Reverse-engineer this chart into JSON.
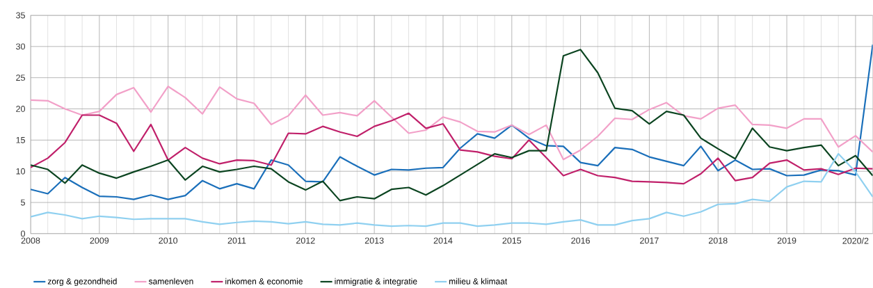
{
  "chart_data": {
    "type": "line",
    "x": [
      2008,
      2008.25,
      2008.5,
      2008.75,
      2009,
      2009.25,
      2009.5,
      2009.75,
      2010,
      2010.25,
      2010.5,
      2010.75,
      2011,
      2011.25,
      2011.5,
      2011.75,
      2012,
      2012.25,
      2012.5,
      2012.75,
      2013,
      2013.25,
      2013.5,
      2013.75,
      2014,
      2014.25,
      2014.5,
      2014.75,
      2015,
      2015.25,
      2015.5,
      2015.75,
      2016,
      2016.25,
      2016.5,
      2016.75,
      2017,
      2017.25,
      2017.5,
      2017.75,
      2018,
      2018.25,
      2018.5,
      2018.75,
      2019,
      2019.25,
      2019.5,
      2019.75,
      2020,
      2020.25
    ],
    "series": [
      {
        "name": "zorg & gezondheid",
        "color": "#1a6fba",
        "values": [
          7.1,
          6.4,
          9.0,
          7.4,
          6.0,
          5.9,
          5.5,
          6.2,
          5.5,
          6.1,
          8.5,
          7.2,
          8.0,
          7.2,
          11.8,
          11.0,
          8.4,
          8.3,
          12.3,
          10.8,
          9.4,
          10.3,
          10.2,
          10.5,
          10.6,
          13.7,
          16.0,
          15.3,
          17.4,
          15.3,
          14.1,
          14.0,
          11.4,
          10.9,
          13.8,
          13.5,
          12.3,
          11.6,
          10.9,
          14.0,
          10.1,
          11.8,
          10.3,
          10.4,
          9.3,
          9.4,
          10.2,
          10.1,
          9.4,
          30.3
        ]
      },
      {
        "name": "samenleven",
        "color": "#f2a0c8",
        "values": [
          21.4,
          21.3,
          20.0,
          19.0,
          19.6,
          22.3,
          23.4,
          19.5,
          23.6,
          21.8,
          19.2,
          23.5,
          21.6,
          20.9,
          17.5,
          18.9,
          22.2,
          19.0,
          19.4,
          18.9,
          21.3,
          18.7,
          16.1,
          16.6,
          18.7,
          17.9,
          16.4,
          16.3,
          17.4,
          15.9,
          17.4,
          11.9,
          13.4,
          15.6,
          18.5,
          18.3,
          19.9,
          21.0,
          18.9,
          18.4,
          20.1,
          20.6,
          17.5,
          17.4,
          16.9,
          18.4,
          18.4,
          13.9,
          15.7,
          13.1
        ]
      },
      {
        "name": "inkomen & economie",
        "color": "#c0206a",
        "values": [
          10.6,
          12.1,
          14.6,
          19.0,
          19.0,
          17.7,
          13.2,
          17.5,
          11.8,
          13.8,
          12.1,
          11.2,
          11.8,
          11.7,
          11.0,
          16.1,
          16.0,
          17.2,
          16.3,
          15.6,
          17.2,
          18.1,
          19.3,
          16.9,
          17.6,
          13.4,
          13.1,
          12.4,
          12.0,
          15.0,
          12.2,
          9.3,
          10.3,
          9.3,
          9.0,
          8.4,
          8.3,
          8.2,
          8.0,
          9.6,
          12.1,
          8.5,
          9.0,
          11.3,
          11.8,
          10.2,
          10.4,
          9.5,
          10.5,
          10.4
        ]
      },
      {
        "name": "immigratie & integratie",
        "color": "#0b4420",
        "values": [
          11.0,
          10.3,
          8.1,
          11.0,
          9.7,
          8.9,
          9.9,
          10.8,
          11.8,
          8.6,
          10.8,
          9.9,
          10.3,
          10.8,
          10.4,
          8.3,
          7.0,
          8.4,
          5.3,
          5.9,
          5.6,
          7.1,
          7.4,
          6.2,
          7.7,
          9.4,
          11.1,
          12.8,
          12.2,
          13.3,
          13.3,
          28.5,
          29.5,
          25.8,
          20.1,
          19.7,
          17.6,
          19.6,
          19.0,
          15.3,
          13.6,
          12.0,
          16.9,
          13.9,
          13.3,
          13.8,
          14.2,
          10.9,
          12.5,
          9.3
        ]
      },
      {
        "name": "milieu & klimaat",
        "color": "#8fd0f0",
        "values": [
          2.7,
          3.4,
          3.0,
          2.4,
          2.8,
          2.6,
          2.3,
          2.4,
          2.4,
          2.4,
          1.9,
          1.5,
          1.8,
          2.0,
          1.9,
          1.6,
          1.9,
          1.5,
          1.4,
          1.7,
          1.4,
          1.2,
          1.3,
          1.2,
          1.7,
          1.7,
          1.2,
          1.4,
          1.7,
          1.7,
          1.5,
          1.9,
          2.2,
          1.4,
          1.4,
          2.1,
          2.4,
          3.4,
          2.8,
          3.5,
          4.7,
          4.8,
          5.5,
          5.2,
          7.5,
          8.4,
          8.3,
          12.8,
          9.9,
          5.9
        ]
      }
    ],
    "xlim": [
      2008,
      2020.25
    ],
    "xticks": [
      2008,
      2009,
      2010,
      2011,
      2012,
      2013,
      2014,
      2015,
      2016,
      2017,
      2018,
      2019,
      {
        "value": 2020,
        "label": "2020/2"
      }
    ],
    "ylim": [
      0,
      35
    ],
    "yticks": [
      0,
      5,
      10,
      15,
      20,
      25,
      30,
      35
    ],
    "grid": true,
    "legend": "bottom",
    "marker": "none"
  }
}
